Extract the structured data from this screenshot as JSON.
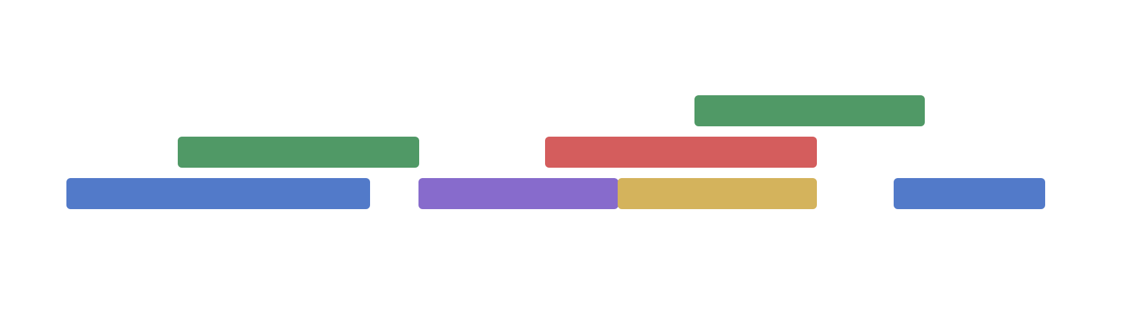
{
  "palette": {
    "blue": "#527ac9",
    "green": "#509966",
    "purple": "#876bcc",
    "red": "#d45d5d",
    "yellow": "#d4b35c"
  },
  "bars": [
    {
      "id": "bar-1",
      "color": "blue"
    },
    {
      "id": "bar-2",
      "color": "green"
    },
    {
      "id": "bar-3",
      "color": "purple"
    },
    {
      "id": "bar-4",
      "color": "red"
    },
    {
      "id": "bar-5",
      "color": "yellow"
    },
    {
      "id": "bar-6",
      "color": "green"
    },
    {
      "id": "bar-7",
      "color": "blue"
    }
  ]
}
